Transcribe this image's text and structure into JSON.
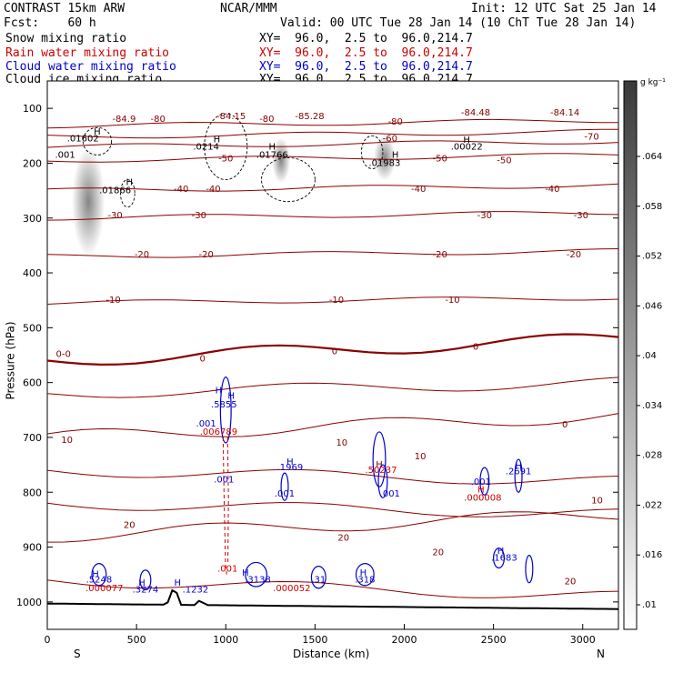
{
  "header": {
    "left1": "CONTRAST 15km ARW",
    "center1": "NCAR/MMM",
    "right1": "Init: 12 UTC Sat 25 Jan 14",
    "left2": "Fcst:    60 h",
    "right2": "Valid: 00 UTC Tue 28 Jan 14 (10 ChT Tue 28 Jan 14)"
  },
  "fields": [
    {
      "name": "Snow mixing ratio",
      "xy": "XY=  96.0,  2.5 to  96.0,214.7",
      "color": "#000000"
    },
    {
      "name": "Rain water mixing ratio",
      "xy": "XY=  96.0,  2.5 to  96.0,214.7",
      "color": "#d00000"
    },
    {
      "name": "Cloud water mixing ratio",
      "xy": "XY=  96.0,  2.5 to  96.0,214.7",
      "color": "#0000cc"
    },
    {
      "name": "Cloud ice mixing ratio",
      "xy": "XY=  96.0,  2.5 to  96.0,214.7",
      "color": "#000000"
    }
  ],
  "colorbar": {
    "unit": "g kg⁻¹",
    "ticks": [
      ".064",
      ".058",
      ".052",
      ".046",
      ".04",
      ".034",
      ".028",
      ".022",
      ".016",
      ".01"
    ]
  },
  "chart_data": {
    "type": "contour",
    "xlabel": "Distance (km)",
    "ylabel": "Pressure (hPa)",
    "xlim": [
      0,
      3200
    ],
    "ylim": [
      1050,
      50
    ],
    "xticks": [
      0,
      500,
      1000,
      1500,
      2000,
      2500,
      3000
    ],
    "yticks": [
      100,
      200,
      300,
      400,
      500,
      600,
      700,
      800,
      900,
      1000
    ],
    "x_end_labels": {
      "left": "S",
      "right": "N"
    },
    "temperature_contours": [
      -80,
      -70,
      -60,
      -50,
      -40,
      -30,
      -20,
      -10,
      0,
      10,
      20
    ],
    "temperature_labels": [
      {
        "x": 430,
        "p": 125,
        "text": "-84.9",
        "color": "#800000"
      },
      {
        "x": 1030,
        "p": 120,
        "text": "-84.15",
        "color": "#800000"
      },
      {
        "x": 1470,
        "p": 120,
        "text": "-85.28",
        "color": "#800000"
      },
      {
        "x": 2400,
        "p": 113,
        "text": "-84.48",
        "color": "#800000"
      },
      {
        "x": 2900,
        "p": 113,
        "text": "-84.14",
        "color": "#800000"
      },
      {
        "x": 620,
        "p": 125,
        "text": "-80",
        "color": "#800000"
      },
      {
        "x": 1230,
        "p": 125,
        "text": "-80",
        "color": "#800000"
      },
      {
        "x": 1950,
        "p": 130,
        "text": "-80",
        "color": "#800000"
      },
      {
        "x": 3050,
        "p": 157,
        "text": "-70",
        "color": "#800000"
      },
      {
        "x": 1920,
        "p": 160,
        "text": "-60",
        "color": "#800000"
      },
      {
        "x": 1000,
        "p": 197,
        "text": "-50",
        "color": "#800000"
      },
      {
        "x": 2200,
        "p": 197,
        "text": "-50",
        "color": "#800000"
      },
      {
        "x": 2560,
        "p": 200,
        "text": "-50",
        "color": "#800000"
      },
      {
        "x": 750,
        "p": 252,
        "text": "-40",
        "color": "#800000"
      },
      {
        "x": 930,
        "p": 252,
        "text": "-40",
        "color": "#800000"
      },
      {
        "x": 2080,
        "p": 252,
        "text": "-40",
        "color": "#800000"
      },
      {
        "x": 2830,
        "p": 252,
        "text": "-40",
        "color": "#800000"
      },
      {
        "x": 380,
        "p": 300,
        "text": "-30",
        "color": "#800000"
      },
      {
        "x": 850,
        "p": 300,
        "text": "-30",
        "color": "#800000"
      },
      {
        "x": 2450,
        "p": 300,
        "text": "-30",
        "color": "#800000"
      },
      {
        "x": 2990,
        "p": 300,
        "text": "-30",
        "color": "#800000"
      },
      {
        "x": 530,
        "p": 372,
        "text": "-20",
        "color": "#800000"
      },
      {
        "x": 890,
        "p": 372,
        "text": "-20",
        "color": "#800000"
      },
      {
        "x": 2200,
        "p": 372,
        "text": "-20",
        "color": "#800000"
      },
      {
        "x": 2950,
        "p": 372,
        "text": "-20",
        "color": "#800000"
      },
      {
        "x": 370,
        "p": 455,
        "text": "-10",
        "color": "#800000"
      },
      {
        "x": 1620,
        "p": 455,
        "text": "-10",
        "color": "#800000"
      },
      {
        "x": 2270,
        "p": 455,
        "text": "-10",
        "color": "#800000"
      },
      {
        "x": 90,
        "p": 553,
        "text": "0-0",
        "color": "#800000"
      },
      {
        "x": 870,
        "p": 562,
        "text": "0",
        "color": "#800000"
      },
      {
        "x": 1610,
        "p": 548,
        "text": "0",
        "color": "#800000"
      },
      {
        "x": 2400,
        "p": 540,
        "text": "0",
        "color": "#800000"
      },
      {
        "x": 2900,
        "p": 682,
        "text": "0",
        "color": "#800000"
      },
      {
        "x": 110,
        "p": 710,
        "text": "10",
        "color": "#800000"
      },
      {
        "x": 1650,
        "p": 715,
        "text": "10",
        "color": "#800000"
      },
      {
        "x": 2090,
        "p": 740,
        "text": "10",
        "color": "#800000"
      },
      {
        "x": 3080,
        "p": 820,
        "text": "10",
        "color": "#800000"
      },
      {
        "x": 460,
        "p": 865,
        "text": "20",
        "color": "#800000"
      },
      {
        "x": 1660,
        "p": 888,
        "text": "20",
        "color": "#800000"
      },
      {
        "x": 2190,
        "p": 915,
        "text": "20",
        "color": "#800000"
      },
      {
        "x": 2930,
        "p": 968,
        "text": "20",
        "color": "#800000"
      }
    ],
    "maxima_labels": [
      {
        "x": 280,
        "p": 148,
        "text": "H",
        "color": "#000000"
      },
      {
        "x": 200,
        "p": 160,
        "text": ".01602",
        "color": "#000000"
      },
      {
        "x": 100,
        "p": 190,
        "text": ".001",
        "color": "#000000"
      },
      {
        "x": 460,
        "p": 240,
        "text": "H",
        "color": "#000000"
      },
      {
        "x": 380,
        "p": 255,
        "text": ".01866",
        "color": "#000000"
      },
      {
        "x": 950,
        "p": 162,
        "text": "H",
        "color": "#000000"
      },
      {
        "x": 890,
        "p": 175,
        "text": ".0214",
        "color": "#000000"
      },
      {
        "x": 1260,
        "p": 175,
        "text": "H",
        "color": "#000000"
      },
      {
        "x": 1260,
        "p": 190,
        "text": ".01766",
        "color": "#000000"
      },
      {
        "x": 1950,
        "p": 190,
        "text": "H",
        "color": "#000000"
      },
      {
        "x": 1890,
        "p": 205,
        "text": ".01983",
        "color": "#000000"
      },
      {
        "x": 2350,
        "p": 163,
        "text": "H",
        "color": "#000000"
      },
      {
        "x": 2350,
        "p": 175,
        "text": ".00022",
        "color": "#000000"
      },
      {
        "x": 960,
        "p": 620,
        "text": "H",
        "color": "#0000cc"
      },
      {
        "x": 1030,
        "p": 630,
        "text": "H",
        "color": "#0000cc"
      },
      {
        "x": 990,
        "p": 645,
        "text": ".5855",
        "color": "#0000cc"
      },
      {
        "x": 890,
        "p": 680,
        "text": ".001",
        "color": "#0000cc"
      },
      {
        "x": 960,
        "p": 695,
        "text": ".006789",
        "color": "#d00000"
      },
      {
        "x": 1360,
        "p": 750,
        "text": "H",
        "color": "#0000cc"
      },
      {
        "x": 1360,
        "p": 760,
        "text": ".1969",
        "color": "#0000cc"
      },
      {
        "x": 1860,
        "p": 755,
        "text": "H",
        "color": "#800000"
      },
      {
        "x": 1870,
        "p": 765,
        "text": ".50237",
        "color": "#d00000"
      },
      {
        "x": 2640,
        "p": 757,
        "text": "H",
        "color": "#0000cc"
      },
      {
        "x": 2640,
        "p": 767,
        "text": ".2691",
        "color": "#0000cc"
      },
      {
        "x": 990,
        "p": 782,
        "text": ".001",
        "color": "#0000cc"
      },
      {
        "x": 1330,
        "p": 808,
        "text": ".001",
        "color": "#0000cc"
      },
      {
        "x": 1920,
        "p": 808,
        "text": ".001",
        "color": "#0000cc"
      },
      {
        "x": 2430,
        "p": 786,
        "text": ".001",
        "color": "#0000cc"
      },
      {
        "x": 2430,
        "p": 800,
        "text": "H",
        "color": "#d00000"
      },
      {
        "x": 2440,
        "p": 815,
        "text": ".000008",
        "color": "#d00000"
      },
      {
        "x": 2540,
        "p": 912,
        "text": "H",
        "color": "#0000cc"
      },
      {
        "x": 2560,
        "p": 925,
        "text": ".1683",
        "color": "#0000cc"
      },
      {
        "x": 1010,
        "p": 945,
        "text": ".001",
        "color": "#d00000"
      },
      {
        "x": 270,
        "p": 955,
        "text": "H",
        "color": "#0000cc"
      },
      {
        "x": 290,
        "p": 965,
        "text": ".5248",
        "color": "#0000cc"
      },
      {
        "x": 320,
        "p": 980,
        "text": ".000077",
        "color": "#d00000"
      },
      {
        "x": 530,
        "p": 970,
        "text": "H",
        "color": "#0000cc"
      },
      {
        "x": 550,
        "p": 983,
        "text": ".3274",
        "color": "#0000cc"
      },
      {
        "x": 730,
        "p": 970,
        "text": "H",
        "color": "#0000cc"
      },
      {
        "x": 830,
        "p": 983,
        "text": ".1232",
        "color": "#0000cc"
      },
      {
        "x": 1110,
        "p": 952,
        "text": "H",
        "color": "#0000cc"
      },
      {
        "x": 1180,
        "p": 965,
        "text": ".3138",
        "color": "#0000cc"
      },
      {
        "x": 1370,
        "p": 980,
        "text": ".000052",
        "color": "#d00000"
      },
      {
        "x": 1520,
        "p": 965,
        "text": ".31",
        "color": "#0000cc"
      },
      {
        "x": 1770,
        "p": 952,
        "text": "H",
        "color": "#0000cc"
      },
      {
        "x": 1780,
        "p": 965,
        "text": ".318",
        "color": "#0000cc"
      }
    ]
  }
}
